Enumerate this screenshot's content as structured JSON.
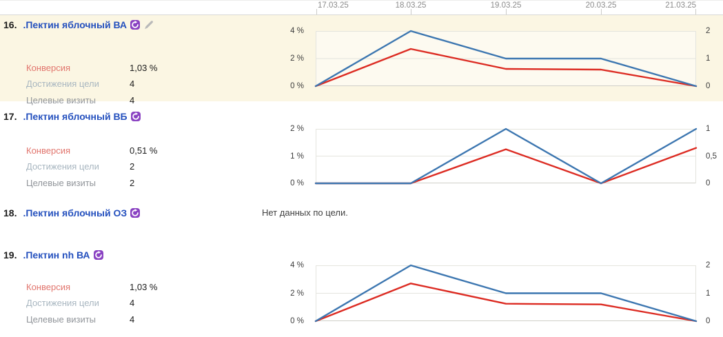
{
  "dates": [
    "17.03.25",
    "18.03.25",
    "19.03.25",
    "20.03.25",
    "21.03.25"
  ],
  "stat_labels": {
    "conversion": "Конверсия",
    "reaches": "Достижения цели",
    "visits": "Целевые визиты"
  },
  "no_data_message": "Нет данных по цели.",
  "colors": {
    "conversion_line": "#dc2b22",
    "reaches_line": "#3c76b0",
    "goal_link": "#2450be",
    "retarget_icon": "#8a42c2",
    "row_highlight": "#fbf6e3",
    "conversion_label": "#e1746c",
    "reaches_label": "#a8b6c0",
    "visits_label": "#909499",
    "grid": "#e4e4de",
    "axis_bottom": "#cfcfc8",
    "date_text": "#8b8b8b",
    "pencil_icon": "#b9b9b9"
  },
  "goals": [
    {
      "index": "16.",
      "name": ".Пектин яблочный ВА",
      "highlighted": true,
      "stats": {
        "conversion": "1,03 %",
        "reaches": "4",
        "visits": "4"
      },
      "chart": {
        "type": "line",
        "x": [
          "17.03.25",
          "18.03.25",
          "19.03.25",
          "20.03.25",
          "21.03.25"
        ],
        "left_axis": {
          "ticks": [
            "4 %",
            "2 %",
            "0 %"
          ],
          "max": 4,
          "unit": "%"
        },
        "right_axis": {
          "ticks": [
            "2",
            "1",
            "0"
          ],
          "max": 2
        },
        "series": [
          {
            "name": "Конверсия",
            "axis": "left",
            "color": "#dc2b22",
            "values": [
              0,
              2.7,
              1.25,
              1.2,
              0
            ]
          },
          {
            "name": "Достижения цели",
            "axis": "right",
            "color": "#3c76b0",
            "values": [
              0,
              2,
              1,
              1,
              0
            ]
          }
        ]
      }
    },
    {
      "index": "17.",
      "name": ".Пектин яблочный ВБ",
      "highlighted": false,
      "stats": {
        "conversion": "0,51 %",
        "reaches": "2",
        "visits": "2"
      },
      "chart": {
        "type": "line",
        "x": [
          "17.03.25",
          "18.03.25",
          "19.03.25",
          "20.03.25",
          "21.03.25"
        ],
        "left_axis": {
          "ticks": [
            "2 %",
            "1 %",
            "0 %"
          ],
          "max": 2,
          "unit": "%"
        },
        "right_axis": {
          "ticks": [
            "1",
            "0,5",
            "0"
          ],
          "max": 1
        },
        "series": [
          {
            "name": "Конверсия",
            "axis": "left",
            "color": "#dc2b22",
            "values": [
              0,
              0,
              1.25,
              0,
              1.3
            ]
          },
          {
            "name": "Достижения цели",
            "axis": "right",
            "color": "#3c76b0",
            "values": [
              0,
              0,
              1,
              0,
              1
            ]
          }
        ]
      }
    },
    {
      "index": "18.",
      "name": ".Пектин яблочный ОЗ",
      "highlighted": false,
      "no_data": true
    },
    {
      "index": "19.",
      "name": ".Пектин nh ВА",
      "highlighted": false,
      "stats": {
        "conversion": "1,03 %",
        "reaches": "4",
        "visits": "4"
      },
      "chart": {
        "type": "line",
        "x": [
          "17.03.25",
          "18.03.25",
          "19.03.25",
          "20.03.25",
          "21.03.25"
        ],
        "left_axis": {
          "ticks": [
            "4 %",
            "2 %",
            "0 %"
          ],
          "max": 4,
          "unit": "%"
        },
        "right_axis": {
          "ticks": [
            "2",
            "1",
            "0"
          ],
          "max": 2
        },
        "series": [
          {
            "name": "Конверсия",
            "axis": "left",
            "color": "#dc2b22",
            "values": [
              0,
              2.7,
              1.25,
              1.2,
              0
            ]
          },
          {
            "name": "Достижения цели",
            "axis": "right",
            "color": "#3c76b0",
            "values": [
              0,
              2,
              1,
              1,
              0
            ]
          }
        ]
      }
    }
  ]
}
